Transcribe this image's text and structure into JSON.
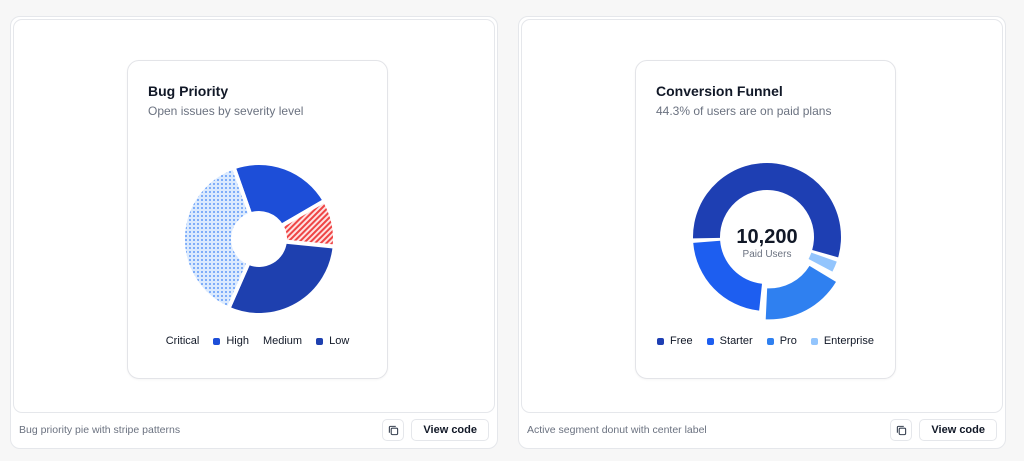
{
  "panels": [
    {
      "description": "Bug priority pie with stripe patterns",
      "view_code_label": "View code",
      "copy_icon": "copy-icon"
    },
    {
      "description": "Active segment donut with center label",
      "view_code_label": "View code",
      "copy_icon": "copy-icon"
    }
  ],
  "chart_data": [
    {
      "type": "pie",
      "title": "Bug Priority",
      "subtitle": "Open issues by severity level",
      "categories": [
        "Critical",
        "High",
        "Medium",
        "Low"
      ],
      "values": [
        10,
        22,
        38,
        30
      ],
      "legend_position": "bottom",
      "colors": {
        "Critical": "#ef4444",
        "High": "#1d4ed8",
        "Medium": "#93c5fd",
        "Low": "#1e40af"
      },
      "patterns": {
        "Critical": "diagonal-stripes",
        "High": "solid",
        "Medium": "dots",
        "Low": "solid"
      }
    },
    {
      "type": "pie",
      "title": "Conversion Funnel",
      "subtitle": "44.3% of users are on paid plans",
      "center_value": "10,200",
      "center_label": "Paid Users",
      "categories": [
        "Free",
        "Starter",
        "Pro",
        "Enterprise"
      ],
      "values": [
        55.7,
        23,
        18,
        3.3
      ],
      "active_segment": "Pro",
      "legend_position": "bottom",
      "colors": {
        "Free": "#1e3fb3",
        "Starter": "#1d5ef0",
        "Pro": "#2f80f0",
        "Enterprise": "#93c5fd"
      }
    }
  ]
}
